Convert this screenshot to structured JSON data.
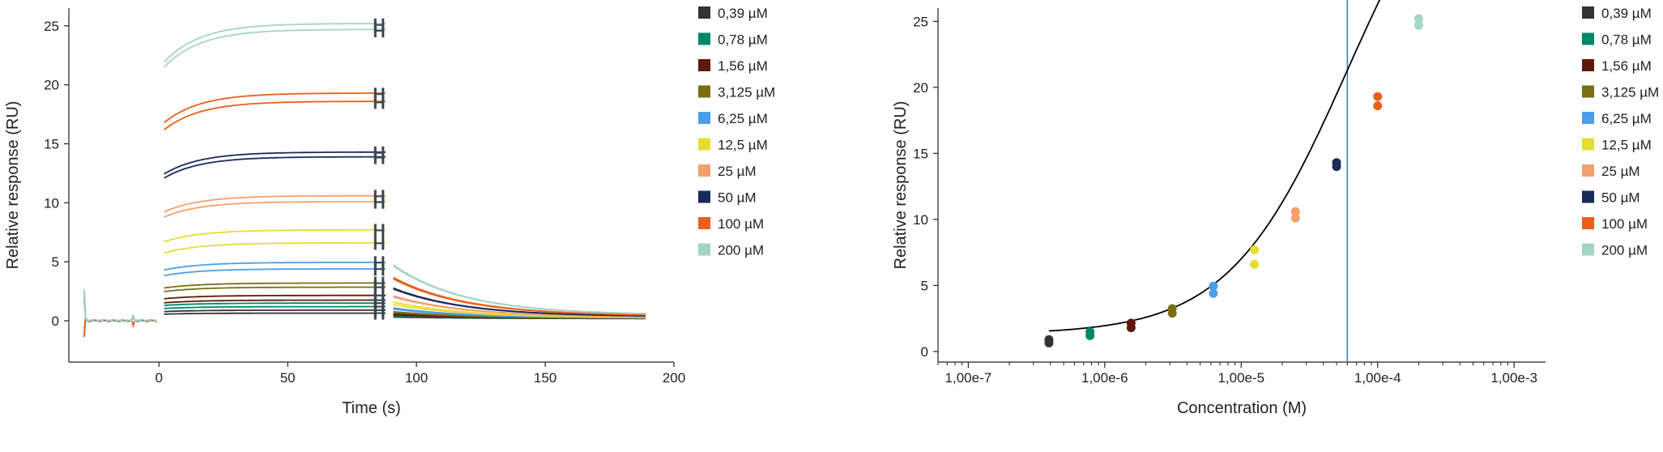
{
  "chart_data": [
    {
      "type": "line",
      "title": "",
      "xlabel": "Time (s)",
      "ylabel": "Relative response (RU)",
      "xlim": [
        -35,
        200
      ],
      "ylim": [
        -3.5,
        26.5
      ],
      "xticks": [
        0,
        50,
        100,
        150,
        200
      ],
      "xtick_labels": [
        "0",
        "50",
        "100",
        "150",
        "200"
      ],
      "yticks": [
        0,
        5,
        10,
        15,
        20,
        25
      ],
      "ytick_labels": [
        "0",
        "5",
        "10",
        "15",
        "20",
        "25"
      ],
      "grid": false,
      "legend_position": "right",
      "association_phase": [
        2,
        88
      ],
      "dissociation_phase": [
        91,
        189
      ],
      "excluded_marker_x": [
        84,
        87
      ],
      "series": [
        {
          "name": "0,39 µM",
          "color": "#333333",
          "replicate_plateaus": [
            0.65,
            0.9
          ]
        },
        {
          "name": "0,78 µM",
          "color": "#00876a",
          "replicate_plateaus": [
            1.2,
            1.5
          ]
        },
        {
          "name": "1,56 µM",
          "color": "#5c1a0a",
          "replicate_plateaus": [
            1.75,
            2.15
          ]
        },
        {
          "name": "3,125 µM",
          "color": "#7a6e14",
          "replicate_plateaus": [
            2.85,
            3.2
          ]
        },
        {
          "name": "6,25 µM",
          "color": "#4a9fea",
          "replicate_plateaus": [
            4.4,
            4.95
          ]
        },
        {
          "name": "12,5 µM",
          "color": "#e8dc32",
          "replicate_plateaus": [
            6.6,
            7.7
          ]
        },
        {
          "name": "25 µM",
          "color": "#f3a06e",
          "replicate_plateaus": [
            10.1,
            10.6
          ]
        },
        {
          "name": "50 µM",
          "color": "#1a2b5a",
          "replicate_plateaus": [
            13.9,
            14.3
          ]
        },
        {
          "name": "100 µM",
          "color": "#e8601c",
          "replicate_plateaus": [
            18.6,
            19.3
          ]
        },
        {
          "name": "200 µM",
          "color": "#a3d4c8",
          "replicate_plateaus": [
            24.7,
            25.2
          ]
        }
      ]
    },
    {
      "type": "scatter",
      "title": "",
      "xlabel": "Concentration (M)",
      "ylabel": "Relative response (RU)",
      "xscale": "log",
      "xlim": [
        6e-08,
        0.0017
      ],
      "ylim": [
        -0.8,
        26
      ],
      "xticks": [
        1e-07,
        1e-06,
        1e-05,
        0.0001,
        0.001
      ],
      "xtick_labels": [
        "1,00e-7",
        "1,00e-6",
        "1,00e-5",
        "1,00e-4",
        "1,00e-3"
      ],
      "yticks": [
        0,
        5,
        10,
        15,
        20,
        25
      ],
      "ytick_labels": [
        "0",
        "5",
        "10",
        "15",
        "20",
        "25"
      ],
      "grid": false,
      "legend_position": "right",
      "reference_line_x": 6e-05,
      "reference_line_color": "#2b7bb9",
      "fit": {
        "bmax": 40,
        "kd": 6e-05,
        "offset": 1.3,
        "range": [
          3.9e-07,
          0.0002
        ],
        "color": "#000000"
      },
      "series": [
        {
          "name": "0,39 µM",
          "color": "#333333",
          "x": [
            3.9e-07,
            3.9e-07
          ],
          "y": [
            0.65,
            0.9
          ]
        },
        {
          "name": "0,78 µM",
          "color": "#00876a",
          "x": [
            7.8e-07,
            7.8e-07
          ],
          "y": [
            1.2,
            1.5
          ]
        },
        {
          "name": "1,56 µM",
          "color": "#5c1a0a",
          "x": [
            1.56e-06,
            1.56e-06
          ],
          "y": [
            1.8,
            2.15
          ]
        },
        {
          "name": "3,125 µM",
          "color": "#7a6e14",
          "x": [
            3.125e-06,
            3.125e-06
          ],
          "y": [
            2.9,
            3.25
          ]
        },
        {
          "name": "6,25 µM",
          "color": "#4a9fea",
          "x": [
            6.25e-06,
            6.25e-06
          ],
          "y": [
            4.4,
            4.95
          ]
        },
        {
          "name": "12,5 µM",
          "color": "#e8dc32",
          "x": [
            1.25e-05,
            1.25e-05
          ],
          "y": [
            6.6,
            7.7
          ]
        },
        {
          "name": "25 µM",
          "color": "#f3a06e",
          "x": [
            2.5e-05,
            2.5e-05
          ],
          "y": [
            10.1,
            10.6
          ]
        },
        {
          "name": "50 µM",
          "color": "#1a2b5a",
          "x": [
            5e-05,
            5e-05
          ],
          "y": [
            14.0,
            14.3
          ]
        },
        {
          "name": "100 µM",
          "color": "#e8601c",
          "x": [
            0.0001,
            0.0001
          ],
          "y": [
            18.6,
            19.3
          ]
        },
        {
          "name": "200 µM",
          "color": "#a3d4c8",
          "x": [
            0.0002,
            0.0002
          ],
          "y": [
            24.7,
            25.2
          ]
        }
      ]
    }
  ]
}
